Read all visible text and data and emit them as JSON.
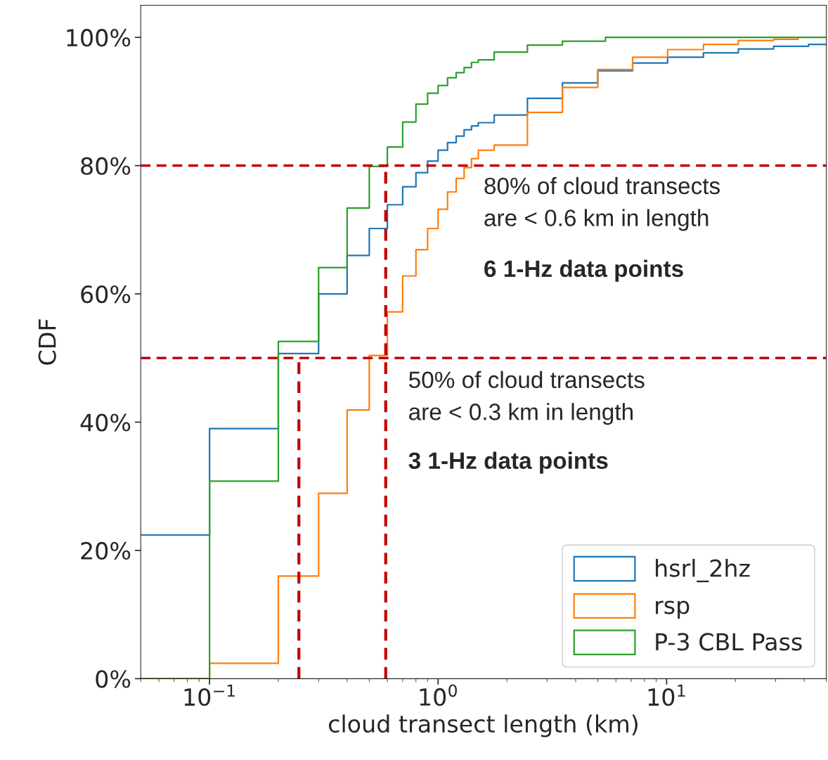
{
  "chart_data": {
    "type": "step",
    "xlabel": "cloud transect length (km)",
    "ylabel": "CDF",
    "log": "x",
    "xlim": [
      0.05,
      50
    ],
    "ylim": [
      0,
      105
    ],
    "xticks": [
      {
        "value": 0.1,
        "label": "10$^{−1}$"
      },
      {
        "value": 1,
        "label": "10$^{0}$"
      },
      {
        "value": 10,
        "label": "10$^{1}$"
      }
    ],
    "yticks": [
      {
        "value": 0,
        "label": "0%"
      },
      {
        "value": 20,
        "label": "20%"
      },
      {
        "value": 40,
        "label": "40%"
      },
      {
        "value": 60,
        "label": "60%"
      },
      {
        "value": 80,
        "label": "80%"
      },
      {
        "value": 100,
        "label": "100%"
      }
    ],
    "grid": false,
    "legend": "bottom right",
    "series": [
      {
        "name": "hsrl_2hz",
        "color": "#1f77b4",
        "x": [
          0.05,
          0.1,
          0.2,
          0.3,
          0.4,
          0.5,
          0.6,
          0.7,
          0.8,
          0.9,
          1.0,
          1.1,
          1.2,
          1.3,
          1.4,
          1.5,
          1.76,
          2.46,
          3.5,
          5.0,
          7.1,
          10.1,
          14.5,
          20.6,
          29.4,
          41.8,
          50
        ],
        "values": [
          22.4,
          39.0,
          50.7,
          60.0,
          66.0,
          70.2,
          73.9,
          76.7,
          78.9,
          80.7,
          82.4,
          83.6,
          84.6,
          85.6,
          86.2,
          86.7,
          87.9,
          90.5,
          92.9,
          94.8,
          96.0,
          96.9,
          97.6,
          98.2,
          98.6,
          98.9,
          98.9
        ]
      },
      {
        "name": "rsp",
        "color": "#ff7f0e",
        "x": [
          0.05,
          0.1,
          0.2,
          0.3,
          0.4,
          0.5,
          0.6,
          0.7,
          0.8,
          0.9,
          1.0,
          1.1,
          1.2,
          1.3,
          1.4,
          1.5,
          1.76,
          2.46,
          3.5,
          5.0,
          7.1,
          10.1,
          14.5,
          20.6,
          29.4,
          37.6
        ],
        "values": [
          0,
          2.4,
          16.0,
          28.9,
          41.9,
          50.4,
          57.2,
          62.8,
          66.9,
          70.2,
          73.2,
          75.9,
          78.0,
          79.7,
          81.1,
          82.4,
          83.2,
          88.3,
          92.2,
          95.0,
          96.9,
          98.1,
          98.9,
          99.5,
          99.7,
          100
        ]
      },
      {
        "name": "P-3 CBL Pass",
        "color": "#2ca02c",
        "x": [
          0.05,
          0.1,
          0.2,
          0.3,
          0.4,
          0.5,
          0.6,
          0.7,
          0.8,
          0.9,
          1.0,
          1.1,
          1.2,
          1.3,
          1.4,
          1.5,
          1.76,
          2.46,
          3.5,
          5.4,
          50
        ],
        "values": [
          0,
          30.8,
          52.6,
          64.1,
          73.4,
          79.9,
          82.9,
          86.8,
          89.6,
          91.3,
          92.5,
          93.7,
          94.5,
          95.3,
          96.1,
          96.5,
          97.7,
          98.8,
          99.4,
          100,
          100
        ]
      },
      {
        "type": "line",
        "color": "#c00000",
        "line_style": "dashed",
        "x": [
          0.246,
          0.246
        ],
        "values": [
          0,
          50
        ]
      },
      {
        "type": "line",
        "color": "#c00000",
        "line_style": "dashed",
        "x": [
          0.59,
          0.59
        ],
        "values": [
          0,
          80
        ]
      }
    ],
    "ref_lines": [
      {
        "axis": "y",
        "value": 80,
        "color": "#c00000",
        "line_style": "dashed"
      },
      {
        "axis": "y",
        "value": 50,
        "color": "#c00000",
        "line_style": "dashed"
      }
    ],
    "annotations": [
      "80% of cloud transects\nare < 0.6 km in length",
      "6 1-Hz data points",
      "50% of cloud transects\nare < 0.3 km in length",
      "3 1-Hz data points"
    ]
  }
}
